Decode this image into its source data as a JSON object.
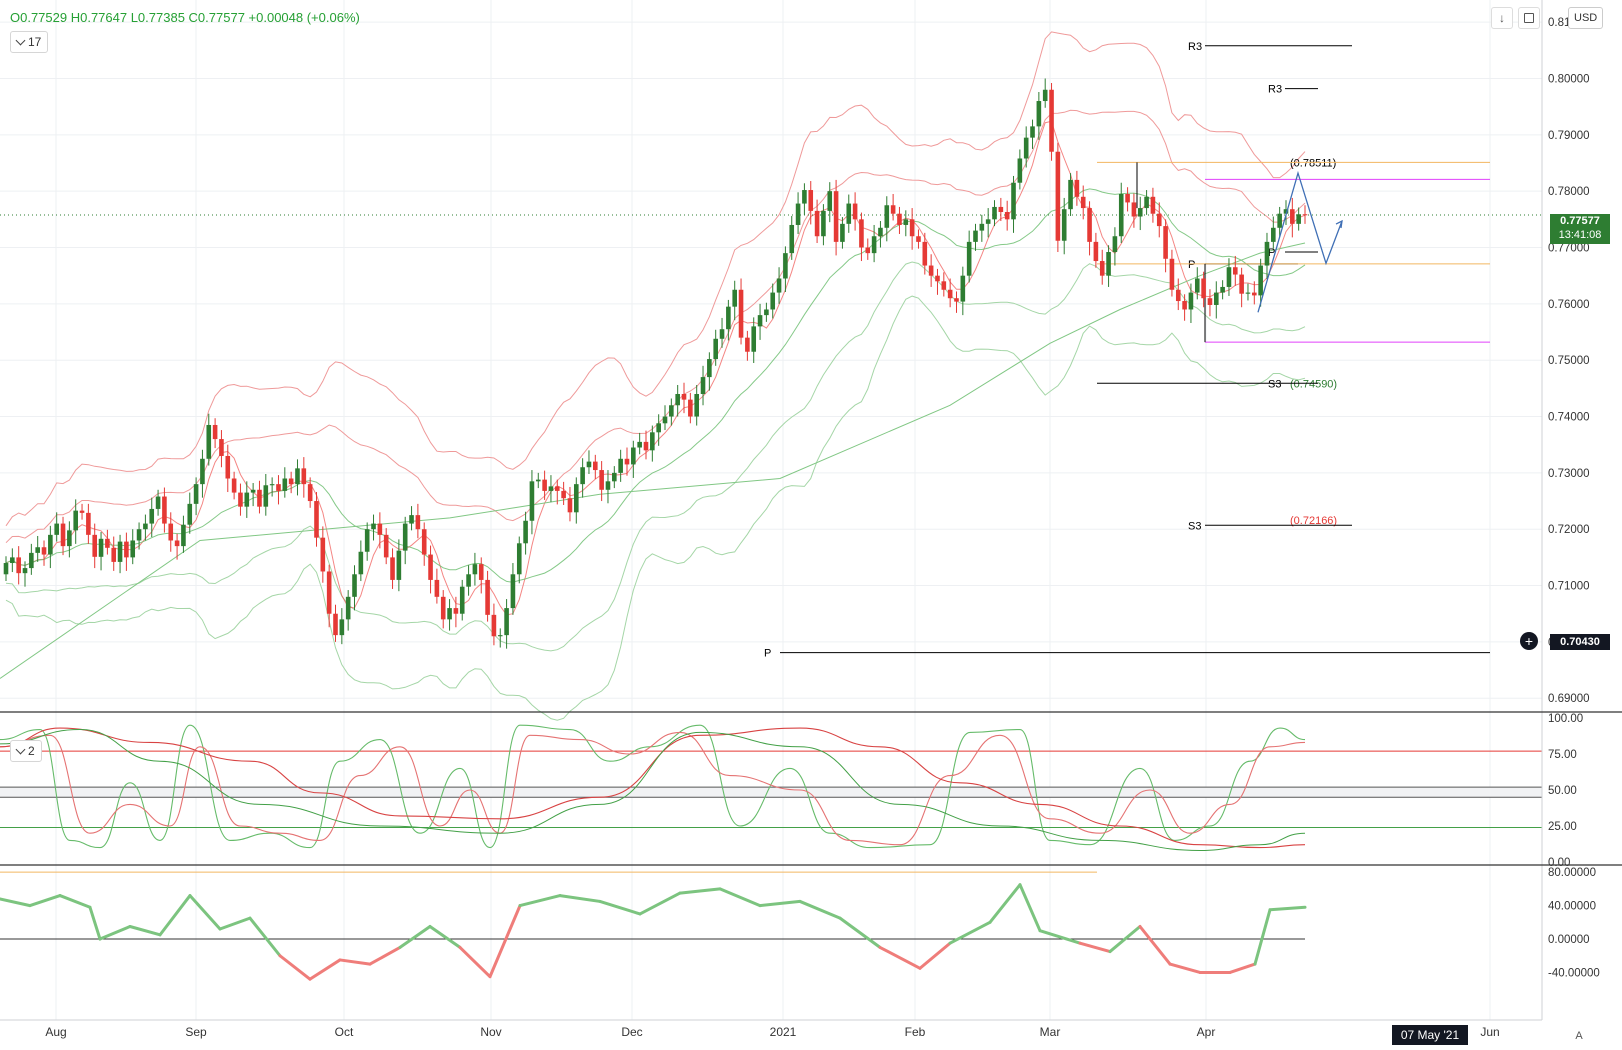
{
  "header": {
    "ohlc": "O0.77529 H0.77647 L0.77385 C0.77577 +0.00048 (+0.06%)",
    "interval": "17",
    "currency": "USD",
    "osc_interval": "2"
  },
  "price_badge": {
    "price": "0.77577",
    "countdown": "13:41:08",
    "crosshair_price": "0.70430"
  },
  "date_badge": "07 May '21",
  "a_button": "A",
  "colors": {
    "up": "#2e7d32",
    "down": "#e53935",
    "upper_band": "#ef9a9a",
    "lower_band": "#a5d6a7",
    "accent": "#131722"
  },
  "chart_data": [
    {
      "type": "candlestick",
      "x_labels": [
        "Aug",
        "Sep",
        "Oct",
        "Nov",
        "Dec",
        "2021",
        "Feb",
        "Mar",
        "Apr",
        "Jun"
      ],
      "y_ticks": [
        "0.69000",
        "0.70000",
        "0.71000",
        "0.72000",
        "0.73000",
        "0.74000",
        "0.75000",
        "0.76000",
        "0.77000",
        "0.78000",
        "0.79000",
        "0.80000",
        "0.81000"
      ],
      "ylim": [
        0.6888,
        0.8118
      ],
      "last_price": 0.77577,
      "levels": [
        {
          "label": "R3",
          "price": 0.8058,
          "color": "#000000"
        },
        {
          "label": "R3",
          "price": 0.7982,
          "color": "#000000"
        },
        {
          "label": "(0.78511)",
          "price": 0.78511,
          "color": "#000000"
        },
        {
          "label": "P",
          "price": 0.7671,
          "color": "#000000"
        },
        {
          "label": "P",
          "price": 0.7692,
          "color": "#000000"
        },
        {
          "label": "(0.74590)",
          "price": 0.7459,
          "color": "#2e7d32"
        },
        {
          "label": "S3",
          "price": 0.7459,
          "color": "#000000"
        },
        {
          "label": "(0.72166)",
          "price": 0.72166,
          "color": "#e53935"
        },
        {
          "label": "S3",
          "price": 0.7207,
          "color": "#000000"
        },
        {
          "label": "P",
          "price": 0.6981,
          "color": "#000000"
        }
      ],
      "horizontal_lines": [
        {
          "price": 0.78511,
          "color": "#f2b661"
        },
        {
          "price": 0.7821,
          "color": "#e040fb"
        },
        {
          "price": 0.7671,
          "color": "#f2b661"
        },
        {
          "price": 0.7532,
          "color": "#e040fb"
        }
      ],
      "close_path": [
        0.714,
        0.715,
        0.7122,
        0.7131,
        0.7158,
        0.7168,
        0.7155,
        0.719,
        0.721,
        0.717,
        0.7198,
        0.7233,
        0.7229,
        0.719,
        0.7151,
        0.7183,
        0.7167,
        0.7142,
        0.7178,
        0.715,
        0.718,
        0.72,
        0.721,
        0.7236,
        0.7258,
        0.721,
        0.718,
        0.717,
        0.7208,
        0.7245,
        0.728,
        0.7325,
        0.7385,
        0.736,
        0.733,
        0.729,
        0.7265,
        0.724,
        0.7265,
        0.727,
        0.724,
        0.7278,
        0.728,
        0.7268,
        0.729,
        0.728,
        0.7308,
        0.728,
        0.725,
        0.7185,
        0.7125,
        0.705,
        0.7012,
        0.704,
        0.708,
        0.712,
        0.716,
        0.72,
        0.721,
        0.719,
        0.715,
        0.711,
        0.7162,
        0.721,
        0.7225,
        0.72,
        0.7155,
        0.711,
        0.708,
        0.704,
        0.706,
        0.705,
        0.7098,
        0.712,
        0.7138,
        0.711,
        0.7048,
        0.701,
        0.7012,
        0.706,
        0.712,
        0.7175,
        0.7215,
        0.7285,
        0.7288,
        0.7268,
        0.7276,
        0.7268,
        0.7255,
        0.723,
        0.728,
        0.731,
        0.732,
        0.7305,
        0.727,
        0.7285,
        0.73,
        0.7325,
        0.7315,
        0.7345,
        0.7355,
        0.734,
        0.7372,
        0.7388,
        0.74,
        0.742,
        0.744,
        0.743,
        0.74,
        0.744,
        0.747,
        0.7502,
        0.7538,
        0.7555,
        0.7595,
        0.7625,
        0.754,
        0.7515,
        0.756,
        0.758,
        0.759,
        0.762,
        0.7645,
        0.769,
        0.774,
        0.7778,
        0.7802,
        0.7765,
        0.772,
        0.7765,
        0.78,
        0.771,
        0.7742,
        0.7778,
        0.775,
        0.77,
        0.769,
        0.772,
        0.7735,
        0.7775,
        0.776,
        0.774,
        0.775,
        0.772,
        0.771,
        0.7668,
        0.765,
        0.764,
        0.7625,
        0.761,
        0.7604,
        0.765,
        0.771,
        0.773,
        0.7742,
        0.775,
        0.7772,
        0.7763,
        0.775,
        0.7815,
        0.7858,
        0.7895,
        0.7915,
        0.796,
        0.798,
        0.787,
        0.7712,
        0.7768,
        0.782,
        0.779,
        0.777,
        0.771,
        0.7676,
        0.765,
        0.7692,
        0.772,
        0.7795,
        0.778,
        0.7755,
        0.777,
        0.779,
        0.776,
        0.7738,
        0.768,
        0.7625,
        0.7605,
        0.759,
        0.762,
        0.7645,
        0.761,
        0.7598,
        0.762,
        0.763,
        0.7665,
        0.7652,
        0.7618,
        0.762,
        0.7615,
        0.7668,
        0.771,
        0.7735,
        0.776,
        0.7768,
        0.7742,
        0.7759,
        0.7758
      ],
      "ma_slow": [
        [
          0,
          0.6935
        ],
        [
          200,
          0.718
        ],
        [
          450,
          0.722
        ],
        [
          600,
          0.7262
        ],
        [
          780,
          0.729
        ],
        [
          950,
          0.742
        ],
        [
          1050,
          0.753
        ],
        [
          1120,
          0.759
        ],
        [
          1200,
          0.765
        ],
        [
          1260,
          0.769
        ],
        [
          1305,
          0.7708
        ]
      ],
      "projection": [
        [
          1258,
          0.7585
        ],
        [
          1298,
          0.7832
        ],
        [
          1326,
          0.7672
        ],
        [
          1342,
          0.7747
        ]
      ]
    },
    {
      "type": "line",
      "y_ticks": [
        "100.00",
        "75.00",
        "50.00",
        "25.00",
        "0.00"
      ],
      "ylim": [
        0,
        100
      ],
      "reference_lines": [
        77,
        52,
        45,
        24
      ],
      "fast_k": [
        [
          0,
          85
        ],
        [
          40,
          92
        ],
        [
          70,
          15
        ],
        [
          100,
          10
        ],
        [
          130,
          55
        ],
        [
          160,
          15
        ],
        [
          190,
          95
        ],
        [
          230,
          15
        ],
        [
          270,
          20
        ],
        [
          310,
          10
        ],
        [
          340,
          70
        ],
        [
          380,
          85
        ],
        [
          420,
          20
        ],
        [
          460,
          65
        ],
        [
          490,
          10
        ],
        [
          520,
          95
        ],
        [
          570,
          92
        ],
        [
          610,
          70
        ],
        [
          650,
          80
        ],
        [
          700,
          95
        ],
        [
          740,
          25
        ],
        [
          790,
          65
        ],
        [
          830,
          20
        ],
        [
          870,
          10
        ],
        [
          930,
          12
        ],
        [
          970,
          90
        ],
        [
          1020,
          92
        ],
        [
          1050,
          15
        ],
        [
          1090,
          12
        ],
        [
          1140,
          65
        ],
        [
          1175,
          15
        ],
        [
          1210,
          25
        ],
        [
          1250,
          70
        ],
        [
          1280,
          93
        ],
        [
          1305,
          85
        ]
      ],
      "slow_d": [
        [
          0,
          80
        ],
        [
          50,
          88
        ],
        [
          90,
          20
        ],
        [
          130,
          40
        ],
        [
          170,
          25
        ],
        [
          200,
          80
        ],
        [
          240,
          25
        ],
        [
          280,
          20
        ],
        [
          320,
          15
        ],
        [
          360,
          60
        ],
        [
          400,
          80
        ],
        [
          440,
          25
        ],
        [
          470,
          50
        ],
        [
          500,
          20
        ],
        [
          530,
          88
        ],
        [
          580,
          85
        ],
        [
          630,
          75
        ],
        [
          680,
          90
        ],
        [
          730,
          60
        ],
        [
          800,
          50
        ],
        [
          850,
          15
        ],
        [
          900,
          12
        ],
        [
          950,
          60
        ],
        [
          1000,
          88
        ],
        [
          1050,
          30
        ],
        [
          1100,
          20
        ],
        [
          1150,
          50
        ],
        [
          1190,
          20
        ],
        [
          1230,
          40
        ],
        [
          1270,
          80
        ],
        [
          1305,
          83
        ]
      ],
      "slow_ma": [
        [
          0,
          80
        ],
        [
          60,
          93
        ],
        [
          150,
          83
        ],
        [
          250,
          70
        ],
        [
          320,
          48
        ],
        [
          400,
          32
        ],
        [
          500,
          30
        ],
        [
          600,
          45
        ],
        [
          700,
          88
        ],
        [
          800,
          93
        ],
        [
          880,
          80
        ],
        [
          960,
          55
        ],
        [
          1040,
          40
        ],
        [
          1120,
          25
        ],
        [
          1200,
          12
        ],
        [
          1260,
          10
        ],
        [
          1305,
          12
        ]
      ],
      "green_ma": [
        [
          0,
          82
        ],
        [
          80,
          92
        ],
        [
          160,
          70
        ],
        [
          260,
          40
        ],
        [
          380,
          25
        ],
        [
          500,
          20
        ],
        [
          600,
          40
        ],
        [
          700,
          90
        ],
        [
          800,
          80
        ],
        [
          900,
          40
        ],
        [
          1000,
          25
        ],
        [
          1100,
          15
        ],
        [
          1200,
          8
        ],
        [
          1260,
          12
        ],
        [
          1305,
          20
        ]
      ]
    },
    {
      "type": "line",
      "y_ticks": [
        "80.00000",
        "40.00000",
        "0.00000",
        "-40.00000"
      ],
      "ylim": [
        -55,
        85
      ],
      "zero_line": 0,
      "reference_line": 80,
      "series": [
        [
          0,
          48
        ],
        [
          30,
          40
        ],
        [
          60,
          52
        ],
        [
          90,
          38
        ],
        [
          100,
          0
        ],
        [
          130,
          15
        ],
        [
          160,
          5
        ],
        [
          190,
          52
        ],
        [
          220,
          12
        ],
        [
          250,
          25
        ],
        [
          280,
          -20
        ],
        [
          310,
          -48
        ],
        [
          340,
          -25
        ],
        [
          370,
          -30
        ],
        [
          400,
          -10
        ],
        [
          430,
          15
        ],
        [
          460,
          -10
        ],
        [
          490,
          -45
        ],
        [
          520,
          40
        ],
        [
          560,
          52
        ],
        [
          600,
          45
        ],
        [
          640,
          30
        ],
        [
          680,
          55
        ],
        [
          720,
          60
        ],
        [
          760,
          40
        ],
        [
          800,
          45
        ],
        [
          840,
          25
        ],
        [
          880,
          -10
        ],
        [
          920,
          -35
        ],
        [
          950,
          -5
        ],
        [
          990,
          20
        ],
        [
          1020,
          65
        ],
        [
          1040,
          10
        ],
        [
          1080,
          -5
        ],
        [
          1110,
          -15
        ],
        [
          1140,
          15
        ],
        [
          1170,
          -30
        ],
        [
          1200,
          -40
        ],
        [
          1230,
          -40
        ],
        [
          1255,
          -30
        ],
        [
          1270,
          35
        ],
        [
          1305,
          38
        ]
      ]
    }
  ]
}
